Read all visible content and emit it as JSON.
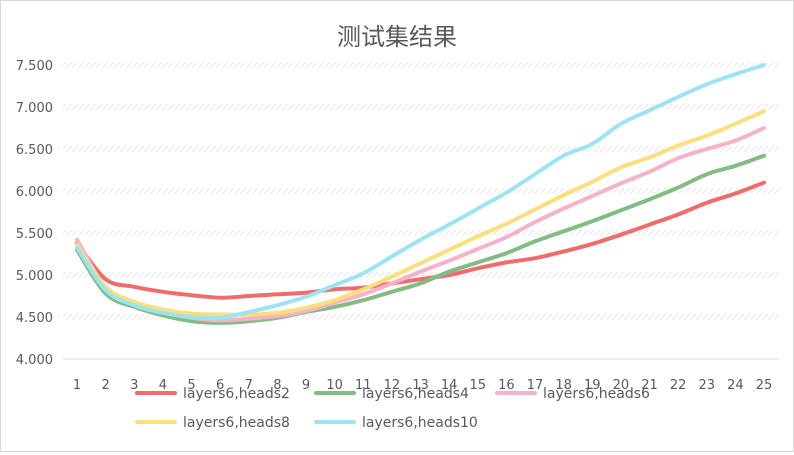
{
  "chart_data": {
    "type": "line",
    "title": "测试集结果",
    "xlabel": "",
    "ylabel": "",
    "ylim": [
      4.0,
      7.5
    ],
    "y_ticks": [
      "4.000",
      "4.500",
      "5.000",
      "5.500",
      "6.000",
      "6.500",
      "7.000",
      "7.500"
    ],
    "y_tick_values": [
      4.0,
      4.5,
      5.0,
      5.5,
      6.0,
      6.5,
      7.0,
      7.5
    ],
    "x": [
      "1",
      "2",
      "3",
      "4",
      "5",
      "6",
      "7",
      "8",
      "9",
      "10",
      "11",
      "12",
      "13",
      "14",
      "15",
      "16",
      "17",
      "18",
      "19",
      "20",
      "21",
      "22",
      "23",
      "24",
      "25"
    ],
    "grid": "horizontal-hatched",
    "legend_position": "bottom",
    "series": [
      {
        "name": "layers6,heads2",
        "color": "#f26b6b",
        "values": [
          5.38,
          4.95,
          4.86,
          4.8,
          4.76,
          4.73,
          4.75,
          4.77,
          4.79,
          4.83,
          4.85,
          4.9,
          4.95,
          5.0,
          5.08,
          5.15,
          5.2,
          5.28,
          5.37,
          5.48,
          5.6,
          5.72,
          5.86,
          5.97,
          6.1
        ]
      },
      {
        "name": "layers6,heads4",
        "color": "#82bc82",
        "values": [
          5.3,
          4.78,
          4.62,
          4.52,
          4.45,
          4.43,
          4.45,
          4.49,
          4.56,
          4.62,
          4.7,
          4.8,
          4.9,
          5.04,
          5.15,
          5.26,
          5.4,
          5.52,
          5.64,
          5.77,
          5.9,
          6.04,
          6.2,
          6.3,
          6.42
        ]
      },
      {
        "name": "layers6,heads6",
        "color": "#f8b2c8",
        "values": [
          5.42,
          4.85,
          4.66,
          4.56,
          4.49,
          4.46,
          4.48,
          4.51,
          4.57,
          4.67,
          4.77,
          4.9,
          5.04,
          5.17,
          5.31,
          5.45,
          5.63,
          5.79,
          5.94,
          6.09,
          6.23,
          6.39,
          6.5,
          6.6,
          6.75
        ]
      },
      {
        "name": "layers6,heads8",
        "color": "#fbdf7a",
        "values": [
          5.36,
          4.86,
          4.68,
          4.59,
          4.54,
          4.53,
          4.53,
          4.55,
          4.61,
          4.7,
          4.83,
          4.98,
          5.14,
          5.3,
          5.46,
          5.61,
          5.78,
          5.95,
          6.11,
          6.28,
          6.4,
          6.54,
          6.66,
          6.8,
          6.95
        ]
      },
      {
        "name": "layers6,heads10",
        "color": "#9de4f2",
        "values": [
          5.33,
          4.82,
          4.64,
          4.55,
          4.5,
          4.49,
          4.56,
          4.64,
          4.74,
          4.88,
          5.02,
          5.22,
          5.42,
          5.6,
          5.79,
          5.98,
          6.2,
          6.42,
          6.56,
          6.8,
          6.96,
          7.12,
          7.27,
          7.39,
          7.5
        ]
      }
    ]
  }
}
